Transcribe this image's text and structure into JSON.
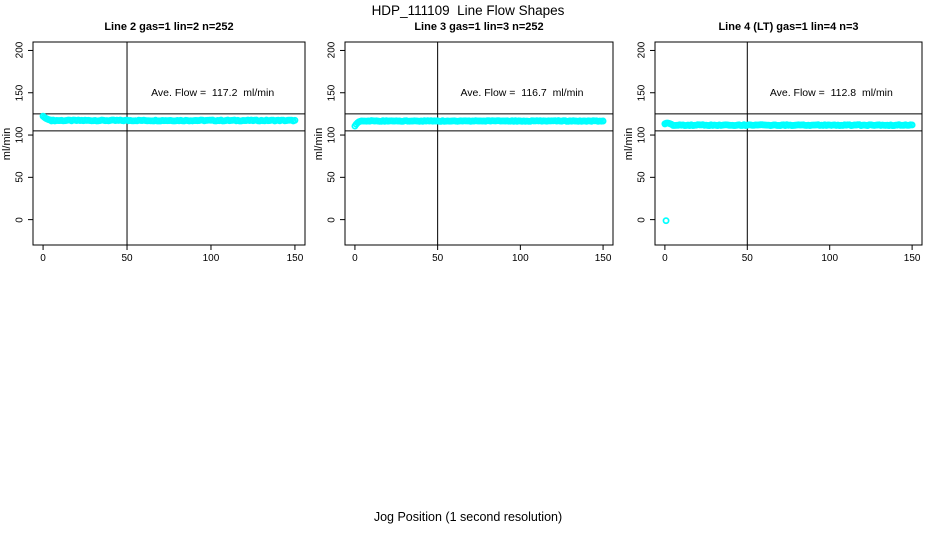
{
  "chart_data": {
    "type": "scatter",
    "title": "HDP_111109  Line Flow Shapes",
    "xlabel": "Jog Position (1 second resolution)",
    "ylabel": "ml/min",
    "x_ticks": [
      0,
      50,
      100,
      150
    ],
    "y_ticks": [
      0,
      50,
      100,
      150,
      200
    ],
    "x_range": [
      -6,
      156
    ],
    "y_range": [
      -30,
      210
    ],
    "grid": false,
    "legend": "none",
    "background_color": "#FFFFFF",
    "axis_color": "#000000",
    "point_color": "#00FFFF",
    "annotation_pos": [
      101,
      150
    ],
    "reference_lines": {
      "horizontal": [
        125,
        105
      ],
      "vertical": [
        50
      ]
    },
    "panels": [
      {
        "title": "Line 2 gas=1 lin=2 n=252",
        "n": 252,
        "ave_flow": 117.2,
        "ave_flow_label": "Ave. Flow =  117.2  ml/min",
        "ylabel": "ml/min",
        "series": {
          "initial_points": [
            [
              0,
              122.3
            ],
            [
              0.8,
              120.9
            ],
            [
              1.6,
              119.8
            ],
            [
              2.4,
              119.0
            ],
            [
              3.2,
              118.3
            ],
            [
              4.0,
              117.9
            ],
            [
              4.8,
              117.6
            ]
          ],
          "steady": {
            "x_from": 5,
            "x_to": 150,
            "step": 1,
            "y": 117.2,
            "jitter": 0.55
          },
          "outliers": []
        }
      },
      {
        "title": "Line 3 gas=1 lin=3 n=252",
        "n": 252,
        "ave_flow": 116.7,
        "ave_flow_label": "Ave. Flow =  116.7  ml/min",
        "ylabel": "ml/min",
        "series": {
          "initial_points": [
            [
              0,
              110.6
            ],
            [
              0.8,
              112.8
            ],
            [
              1.6,
              114.5
            ],
            [
              2.4,
              115.6
            ],
            [
              3.2,
              116.2
            ]
          ],
          "steady": {
            "x_from": 4,
            "x_to": 150,
            "step": 1,
            "y": 116.6,
            "jitter": 0.45
          },
          "outliers": []
        }
      },
      {
        "title": "Line 4 (LT) gas=1 lin=4 n=3",
        "n": 3,
        "ave_flow": 112.8,
        "ave_flow_label": "Ave. Flow =  112.8  ml/min",
        "ylabel": "ml/min",
        "series": {
          "initial_points": [
            [
              0,
              113.2
            ],
            [
              0.8,
              114.0
            ],
            [
              1.6,
              114.2
            ],
            [
              2.4,
              113.9
            ],
            [
              3.2,
              113.3
            ],
            [
              4.0,
              112.7
            ]
          ],
          "steady": {
            "x_from": 5,
            "x_to": 150,
            "step": 1,
            "y": 111.7,
            "jitter": 0.55
          },
          "outliers": [
            [
              0.7,
              -1.2
            ]
          ]
        }
      }
    ]
  }
}
